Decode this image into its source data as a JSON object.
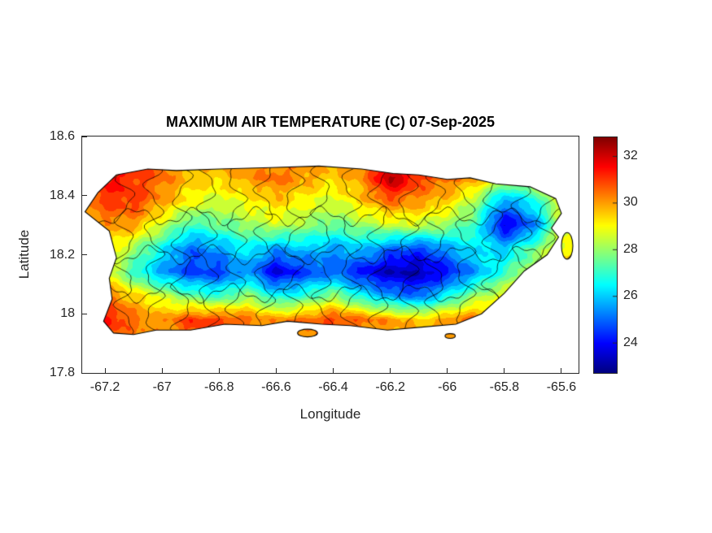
{
  "figure": {
    "title": "MAXIMUM AIR TEMPERATURE (C) 07-Sep-2025",
    "xlabel": "Longitude",
    "ylabel": "Latitude",
    "background": "#ffffff"
  },
  "axes": {
    "xlim": [
      -67.28,
      -65.54
    ],
    "ylim": [
      17.8,
      18.6
    ],
    "xticks": [
      -67.2,
      -67.0,
      -66.8,
      -66.6,
      -66.4,
      -66.2,
      -66.0,
      -65.8,
      -65.6
    ],
    "xtick_labels": [
      "-67.2",
      "-67",
      "-66.8",
      "-66.6",
      "-66.4",
      "-66.2",
      "-66",
      "-65.8",
      "-65.6"
    ],
    "yticks": [
      18.6,
      18.4,
      18.2,
      18.0,
      17.8
    ],
    "ytick_labels": [
      "18.6",
      "18.4",
      "18.2",
      "18",
      "17.8"
    ],
    "axis_color": "#262626"
  },
  "colorbar": {
    "clim": [
      22.7,
      32.8
    ],
    "ticks": [
      32,
      30,
      28,
      26,
      24
    ],
    "tick_labels": [
      "32",
      "30",
      "28",
      "26",
      "24"
    ],
    "colormap": "jet"
  },
  "chart_data": {
    "type": "heatmap",
    "title": "MAXIMUM AIR TEMPERATURE (C) 07-Sep-2025",
    "xlabel": "Longitude",
    "ylabel": "Latitude",
    "units": "C",
    "date": "07-Sep-2025",
    "region": "Puerto Rico",
    "colormap": "jet",
    "clim": [
      22.7,
      32.8
    ],
    "xlim": [
      -67.28,
      -65.54
    ],
    "ylim": [
      17.8,
      18.6
    ],
    "grid": {
      "lons": [
        -67.3,
        -67.2,
        -67.1,
        -67.0,
        -66.9,
        -66.8,
        -66.7,
        -66.6,
        -66.5,
        -66.4,
        -66.3,
        -66.2,
        -66.1,
        -66.0,
        -65.9,
        -65.8,
        -65.7,
        -65.6,
        -65.5
      ],
      "lats": [
        17.9,
        17.98,
        18.06,
        18.14,
        18.22,
        18.3,
        18.38,
        18.46,
        18.55
      ],
      "values": [
        [
          30.5,
          30.5,
          30.0,
          30.0,
          30.5,
          30.5,
          30.0,
          30.0,
          30.0,
          30.5,
          30.0,
          30.0,
          29.5,
          30.0,
          30.0,
          29.5,
          29.0,
          29.0,
          29.0
        ],
        [
          31.0,
          31.5,
          30.5,
          30.0,
          31.0,
          31.0,
          30.5,
          30.0,
          30.5,
          31.0,
          30.5,
          30.0,
          29.5,
          30.0,
          30.5,
          29.5,
          29.0,
          29.0,
          29.0
        ],
        [
          30.5,
          30.5,
          29.5,
          28.5,
          27.5,
          27.0,
          28.0,
          26.5,
          27.0,
          28.0,
          26.5,
          25.5,
          25.0,
          26.5,
          28.0,
          29.0,
          29.5,
          29.5,
          29.5
        ],
        [
          30.0,
          29.0,
          27.0,
          25.5,
          24.5,
          24.5,
          25.5,
          23.5,
          24.5,
          25.0,
          24.0,
          23.2,
          23.2,
          24.0,
          25.5,
          27.0,
          28.5,
          29.5,
          29.5
        ],
        [
          29.5,
          29.5,
          28.0,
          26.5,
          25.0,
          25.5,
          26.5,
          25.5,
          26.0,
          25.5,
          26.0,
          25.0,
          24.5,
          25.5,
          26.5,
          26.0,
          27.5,
          29.0,
          29.0
        ],
        [
          29.5,
          30.0,
          30.0,
          28.5,
          27.0,
          27.5,
          28.0,
          28.5,
          28.0,
          27.5,
          28.0,
          28.5,
          28.5,
          28.0,
          27.0,
          23.5,
          25.0,
          28.5,
          29.0
        ],
        [
          30.0,
          31.0,
          31.0,
          30.0,
          29.0,
          28.5,
          29.0,
          29.5,
          29.0,
          28.5,
          29.5,
          30.5,
          30.0,
          29.5,
          28.0,
          25.5,
          26.5,
          29.0,
          29.5
        ],
        [
          30.5,
          31.5,
          31.0,
          30.5,
          29.5,
          29.5,
          30.0,
          30.5,
          30.0,
          29.5,
          30.0,
          32.5,
          31.0,
          30.5,
          30.0,
          28.5,
          28.5,
          29.5,
          29.5
        ],
        [
          30.0,
          31.0,
          31.0,
          30.5,
          30.0,
          30.0,
          30.5,
          30.0,
          30.0,
          30.0,
          30.5,
          31.5,
          30.5,
          30.5,
          30.0,
          29.0,
          29.0,
          29.5,
          29.5
        ]
      ]
    },
    "island_outline": [
      [
        -67.16,
        18.47
      ],
      [
        -67.05,
        18.49
      ],
      [
        -66.95,
        18.485
      ],
      [
        -66.8,
        18.49
      ],
      [
        -66.62,
        18.495
      ],
      [
        -66.45,
        18.5
      ],
      [
        -66.3,
        18.49
      ],
      [
        -66.19,
        18.475
      ],
      [
        -66.1,
        18.47
      ],
      [
        -66.0,
        18.455
      ],
      [
        -65.92,
        18.46
      ],
      [
        -65.83,
        18.44
      ],
      [
        -65.71,
        18.43
      ],
      [
        -65.62,
        18.39
      ],
      [
        -65.6,
        18.34
      ],
      [
        -65.635,
        18.29
      ],
      [
        -65.61,
        18.26
      ],
      [
        -65.65,
        18.2
      ],
      [
        -65.73,
        18.145
      ],
      [
        -65.8,
        18.07
      ],
      [
        -65.88,
        18.0
      ],
      [
        -65.97,
        17.965
      ],
      [
        -66.09,
        17.955
      ],
      [
        -66.21,
        17.945
      ],
      [
        -66.34,
        17.96
      ],
      [
        -66.44,
        17.965
      ],
      [
        -66.56,
        17.975
      ],
      [
        -66.65,
        17.96
      ],
      [
        -66.78,
        17.965
      ],
      [
        -66.9,
        17.945
      ],
      [
        -67.02,
        17.945
      ],
      [
        -67.1,
        17.93
      ],
      [
        -67.17,
        17.935
      ],
      [
        -67.205,
        17.975
      ],
      [
        -67.175,
        18.05
      ],
      [
        -67.185,
        18.12
      ],
      [
        -67.16,
        18.19
      ],
      [
        -67.185,
        18.28
      ],
      [
        -67.27,
        18.345
      ],
      [
        -67.225,
        18.41
      ]
    ],
    "islets": [
      {
        "center": [
          -66.49,
          17.935
        ],
        "rx": 0.035,
        "ry": 0.013
      },
      {
        "center": [
          -65.99,
          17.925
        ],
        "rx": 0.018,
        "ry": 0.008
      },
      {
        "center": [
          -65.58,
          18.23
        ],
        "rx": 0.02,
        "ry": 0.045
      }
    ],
    "boundaries": {
      "vertical_lons": [
        -67.13,
        -67.03,
        -66.93,
        -66.84,
        -66.74,
        -66.64,
        -66.54,
        -66.44,
        -66.34,
        -66.24,
        -66.14,
        -66.04,
        -65.94,
        -65.84,
        -65.74,
        -65.66
      ],
      "horizontal_lats": [
        18.07,
        18.2,
        18.33
      ]
    }
  }
}
